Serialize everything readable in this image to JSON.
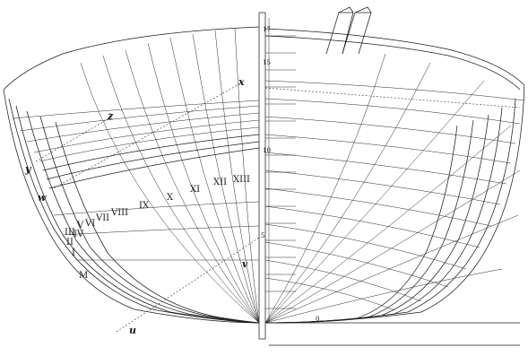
{
  "stations_left": [
    "M",
    "I",
    "II",
    "III",
    "IV",
    "V",
    "VI",
    "VII",
    "VIII",
    "IX",
    "X",
    "XI",
    "XII",
    "XIII"
  ],
  "construction_letters": [
    "x",
    "z",
    "y",
    "w",
    "v",
    "u"
  ],
  "scale_marks": [
    "0",
    "5",
    "10",
    "15",
    "17"
  ],
  "colors": {
    "ink": "#1c1c1c",
    "paper": "#ffffff"
  }
}
